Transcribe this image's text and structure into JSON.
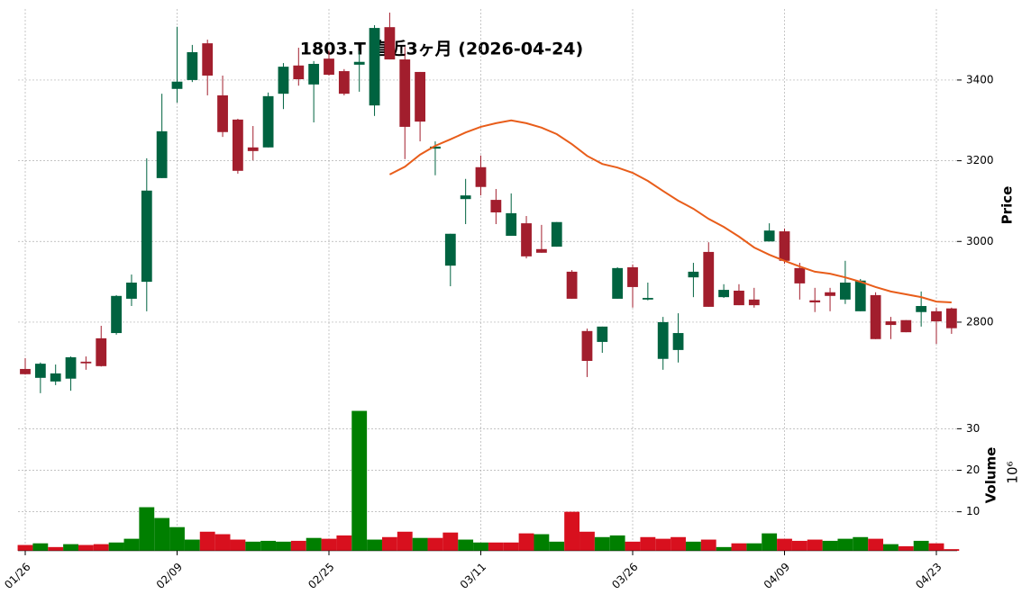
{
  "chart_data": {
    "type": "candlestick",
    "title": "1803.T 直近3ヶ月 (2026-04-24)",
    "ylabel": "Price",
    "y2label": "Volume",
    "y2_exponent": "10⁶",
    "categories": [
      "01/26",
      null,
      null,
      null,
      null,
      null,
      null,
      null,
      null,
      null,
      "02/09",
      null,
      null,
      null,
      null,
      null,
      null,
      null,
      null,
      null,
      "02/25",
      null,
      null,
      null,
      null,
      null,
      null,
      null,
      null,
      null,
      "03/11",
      null,
      null,
      null,
      null,
      null,
      null,
      null,
      null,
      null,
      "03/26",
      null,
      null,
      null,
      null,
      null,
      null,
      null,
      null,
      null,
      "04/09",
      null,
      null,
      null,
      null,
      null,
      null,
      null,
      null,
      null,
      "04/23",
      null
    ],
    "open": [
      2684,
      2662,
      2653,
      2660,
      2702,
      2760,
      2773,
      2858,
      2900,
      3157,
      3378,
      3400,
      3491,
      3362,
      3302,
      3233,
      3233,
      3366,
      3436,
      3389,
      3453,
      3422,
      3438,
      3337,
      3531,
      3451,
      3420,
      3230,
      2940,
      3105,
      3184,
      3103,
      3014,
      3045,
      2981,
      2987,
      2925,
      2778,
      2751,
      2858,
      2936,
      2856,
      2709,
      2731,
      2911,
      2974,
      2862,
      2878,
      2856,
      3000,
      3025,
      2934,
      2854,
      2874,
      2856,
      2827,
      2867,
      2802,
      2805,
      2825,
      2827,
      2834
    ],
    "high": [
      2711,
      2700,
      2695,
      2715,
      2715,
      2791,
      2867,
      2918,
      3206,
      3366,
      3532,
      3487,
      3500,
      3411,
      3304,
      3286,
      3369,
      3442,
      3480,
      3447,
      3473,
      3427,
      3473,
      3536,
      3567,
      3482,
      3420,
      3248,
      3019,
      3155,
      3213,
      3130,
      3119,
      3063,
      3041,
      3048,
      2929,
      2784,
      2789,
      2936,
      2943,
      2898,
      2813,
      2822,
      2947,
      2998,
      2894,
      2894,
      2885,
      3045,
      3032,
      2947,
      2885,
      2885,
      2952,
      2907,
      2874,
      2813,
      2805,
      2876,
      2836,
      2836
    ],
    "low": [
      2670,
      2624,
      2644,
      2630,
      2682,
      2690,
      2769,
      2840,
      2827,
      3157,
      3344,
      3395,
      3362,
      3259,
      3168,
      3201,
      3233,
      3328,
      3386,
      3295,
      3411,
      3362,
      3371,
      3311,
      3451,
      3204,
      3248,
      3164,
      2889,
      3043,
      3114,
      3043,
      3014,
      2958,
      2972,
      2987,
      2858,
      2664,
      2724,
      2858,
      2836,
      2854,
      2682,
      2700,
      2862,
      2838,
      2860,
      2842,
      2836,
      3000,
      2945,
      2856,
      2825,
      2827,
      2845,
      2827,
      2758,
      2758,
      2775,
      2789,
      2746,
      2771
    ],
    "close": [
      2671,
      2697,
      2673,
      2713,
      2698,
      2691,
      2865,
      2898,
      3126,
      3273,
      3396,
      3469,
      3411,
      3271,
      3175,
      3224,
      3360,
      3433,
      3402,
      3440,
      3413,
      3366,
      3445,
      3529,
      3451,
      3284,
      3297,
      3235,
      3019,
      3114,
      3135,
      3072,
      3070,
      2963,
      2972,
      3048,
      2858,
      2704,
      2789,
      2934,
      2887,
      2860,
      2800,
      2773,
      2925,
      2838,
      2880,
      2842,
      2842,
      3027,
      2952,
      2896,
      2849,
      2865,
      2898,
      2903,
      2758,
      2793,
      2775,
      2840,
      2802,
      2785
    ],
    "volume": [
      2.0,
      2.4,
      1.5,
      2.2,
      2.0,
      2.2,
      2.6,
      3.5,
      11.1,
      8.5,
      6.3,
      3.3,
      5.2,
      4.6,
      3.3,
      2.8,
      3.0,
      2.8,
      3.0,
      3.7,
      3.5,
      4.3,
      34.3,
      3.3,
      3.9,
      5.2,
      3.7,
      3.7,
      5.0,
      3.3,
      2.6,
      2.6,
      2.6,
      4.8,
      4.6,
      2.8,
      10.0,
      5.2,
      3.9,
      4.3,
      2.8,
      3.9,
      3.5,
      3.9,
      2.8,
      3.3,
      1.5,
      2.4,
      2.4,
      4.8,
      3.5,
      3.0,
      3.3,
      3.0,
      3.5,
      3.9,
      3.5,
      2.2,
      1.7,
      3.0,
      2.4,
      1.0
    ],
    "moving_average": [
      null,
      null,
      null,
      null,
      null,
      null,
      null,
      null,
      null,
      null,
      null,
      null,
      null,
      null,
      null,
      null,
      null,
      null,
      null,
      null,
      null,
      null,
      null,
      null,
      3166,
      3185,
      3215,
      3237,
      3253,
      3270,
      3284,
      3293,
      3300,
      3293,
      3282,
      3266,
      3241,
      3212,
      3192,
      3183,
      3170,
      3150,
      3125,
      3101,
      3081,
      3056,
      3036,
      3012,
      2985,
      2967,
      2952,
      2938,
      2925,
      2920,
      2911,
      2900,
      2887,
      2876,
      2869,
      2862,
      2851,
      2849
    ],
    "up_color": "#006340",
    "down_color": "#a21e2d",
    "volume_up_color": "#007f00",
    "volume_down_color": "#d8101e",
    "ma_color": "#e85d1a",
    "ylim": [
      2617,
      3576
    ],
    "yticks": [
      2800,
      3000,
      3200,
      3400
    ],
    "y2lim": [
      0.6,
      36.8
    ],
    "y2ticks": [
      10,
      20,
      30
    ],
    "grid": true
  }
}
